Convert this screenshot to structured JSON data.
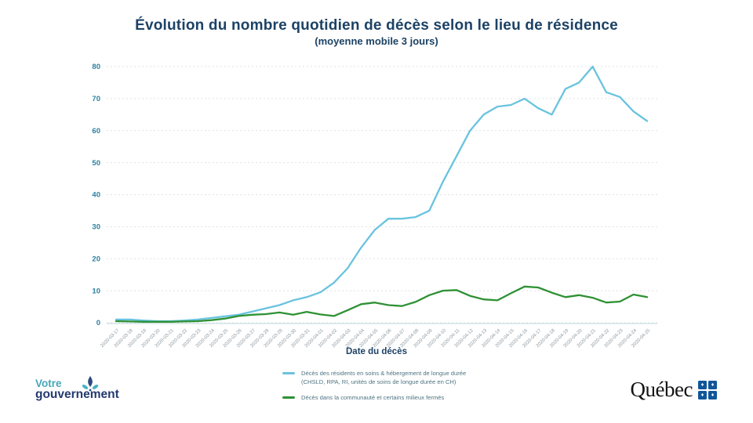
{
  "title": "Évolution du nombre quotidien de décès selon le lieu de résidence",
  "subtitle": "(moyenne mobile 3 jours)",
  "chart_data": {
    "type": "line",
    "x": [
      "2020-03-17",
      "2020-03-18",
      "2020-03-19",
      "2020-03-20",
      "2020-03-21",
      "2020-03-22",
      "2020-03-23",
      "2020-03-24",
      "2020-03-25",
      "2020-03-26",
      "2020-03-27",
      "2020-03-28",
      "2020-03-29",
      "2020-03-30",
      "2020-03-31",
      "2020-04-01",
      "2020-04-02",
      "2020-04-03",
      "2020-04-04",
      "2020-04-05",
      "2020-04-06",
      "2020-04-07",
      "2020-04-08",
      "2020-04-09",
      "2020-04-10",
      "2020-04-11",
      "2020-04-12",
      "2020-04-13",
      "2020-04-14",
      "2020-04-15",
      "2020-04-16",
      "2020-04-17",
      "2020-04-18",
      "2020-04-19",
      "2020-04-20",
      "2020-04-21",
      "2020-04-22",
      "2020-04-23",
      "2020-04-24",
      "2020-04-25"
    ],
    "series": [
      {
        "name": "Décès des résidents en soins & hébergement de longue durée (CHSLD, RPA, RI, unités de soins de longue durée en CH)",
        "color": "#69c3df",
        "values": [
          1,
          1,
          0.7,
          0.5,
          0.5,
          0.7,
          1,
          1.5,
          2,
          2.5,
          3.5,
          4.5,
          5.5,
          7,
          8,
          9.5,
          12.5,
          17,
          23.5,
          29,
          32.5,
          32.5,
          33,
          35,
          44,
          52,
          60,
          65,
          67.5,
          68,
          70,
          67,
          65,
          73,
          75,
          80,
          72,
          70.5,
          66,
          63
        ]
      },
      {
        "name": "Décès dans la communauté et certains milieux fermés",
        "color": "#2f9134",
        "values": [
          0.5,
          0.4,
          0.3,
          0.3,
          0.3,
          0.4,
          0.5,
          0.8,
          1.3,
          2.1,
          2.5,
          2.7,
          3.2,
          2.5,
          3.4,
          2.6,
          2.1,
          3.9,
          5.8,
          6.3,
          5.5,
          5.2,
          6.5,
          8.6,
          10,
          10.2,
          8.4,
          7.3,
          7,
          9.2,
          11.3,
          11,
          9.4,
          8,
          8.6,
          7.8,
          6.3,
          6.6,
          8.8,
          8
        ]
      }
    ],
    "xlabel": "Date du décès",
    "ylabel": "",
    "ylim": [
      0,
      80
    ],
    "yticks": [
      0,
      10,
      20,
      30,
      40,
      50,
      60,
      70,
      80
    ],
    "grid": "horizontal-dotted",
    "legend_position": "bottom-center"
  },
  "legend": {
    "items": [
      {
        "label_line1": "Décès des résidents en soins & hébergement de longue durée",
        "label_line2": "(CHSLD, RPA, RI, unités de soins de longue durée en CH)",
        "color": "#69c3df"
      },
      {
        "label_line1": "Décès dans la communauté et certains milieux fermés",
        "label_line2": "",
        "color": "#2f9134"
      }
    ]
  },
  "footer": {
    "votre_line1": "Votre",
    "votre_line2": "gouvernement",
    "quebec_wordmark": "Québec",
    "flag_glyph": "♦"
  },
  "colors": {
    "title": "#1c4265",
    "y_tick_label": "#2c80a1",
    "x_tick_label": "#8b98a1",
    "gridline": "#dfe3e6",
    "axis_line": "#c9dde2",
    "legend_text": "#4f7482",
    "votre_teal": "#45a6b8",
    "gouv_navy": "#24396f",
    "quebec_flag_blue": "#10569a"
  }
}
